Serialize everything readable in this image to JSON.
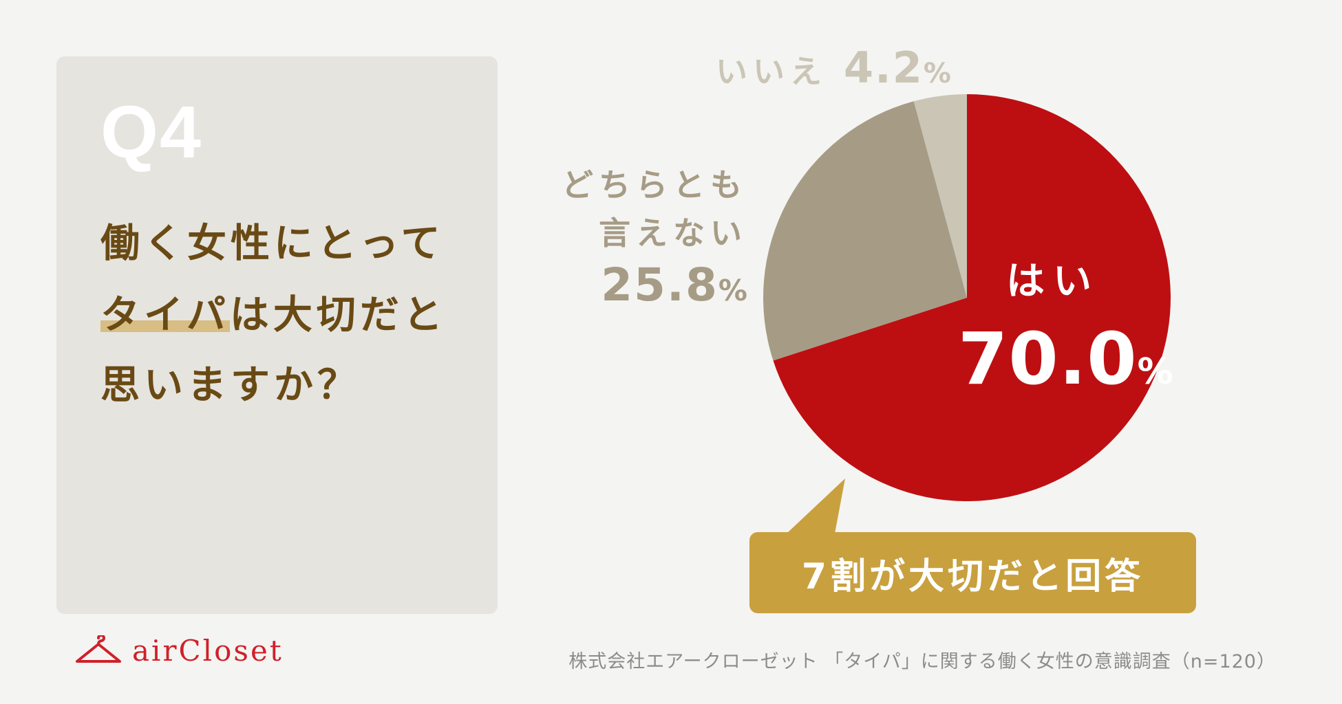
{
  "question": {
    "number": "Q4",
    "line1": "働く女性にとって",
    "line2_highlight": "タイパ",
    "line2_rest": "は大切だと",
    "line3": "思いますか？"
  },
  "chart_data": {
    "type": "pie",
    "start": "top, clockwise",
    "slices": [
      {
        "label": "はい",
        "value": 70.0,
        "color": "#bd0f12"
      },
      {
        "label": "どちらとも言えない",
        "value": 25.8,
        "color": "#a69c86"
      },
      {
        "label": "いいえ",
        "value": 4.2,
        "color": "#cbc5b6"
      }
    ],
    "unit": "%"
  },
  "labels": {
    "no_label": "いいえ",
    "no_value": "4.2",
    "neutral_line1": "どちらとも",
    "neutral_line2": "言えない",
    "neutral_value": "25.8",
    "yes_label": "はい",
    "yes_value": "70.0",
    "pct": "%"
  },
  "callout": {
    "text": "7割が大切だと回答",
    "color": "#c8a03e"
  },
  "logo": {
    "text": "airCloset",
    "icon": "hanger-icon",
    "color": "#d0202a"
  },
  "source": "株式会社エアークローゼット 「タイパ」に関する働く女性の意識調査（n=120）"
}
